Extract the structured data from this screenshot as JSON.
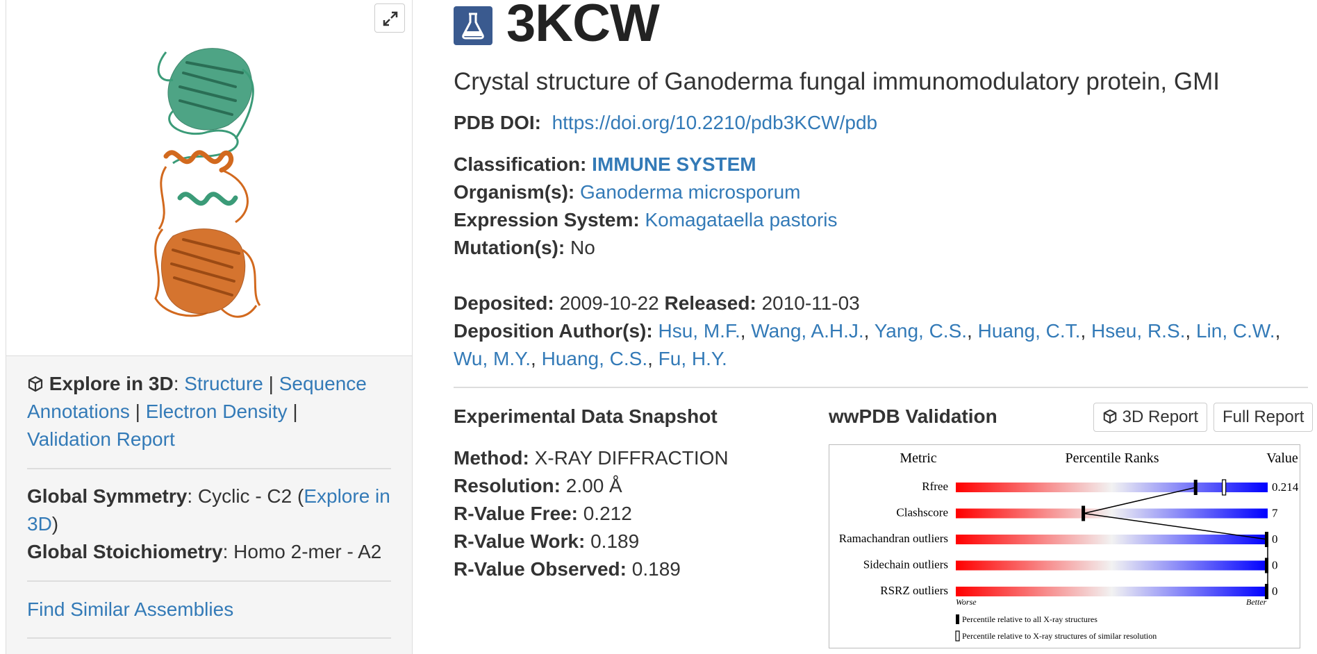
{
  "left_panel": {
    "explore": {
      "label": "Explore in 3D",
      "colon": ":",
      "links": [
        "Structure",
        "Sequence Annotations",
        "Electron Density",
        "Validation Report"
      ],
      "separator": "|"
    },
    "symmetry": {
      "label": "Global Symmetry",
      "value": ": Cyclic - C2",
      "explore_link": "Explore in 3D",
      "open_paren": "(",
      "close_paren": ")"
    },
    "stoichiometry": {
      "label": "Global Stoichiometry",
      "value": ": Homo 2-mer - A2"
    },
    "find_similar": "Find Similar Assemblies"
  },
  "header": {
    "id": "3KCW",
    "title": "Crystal structure of Ganoderma fungal immunomodulatory protein, GMI"
  },
  "details": {
    "doi_label": "PDB DOI:",
    "doi": "https://doi.org/10.2210/pdb3KCW/pdb",
    "classification_label": "Classification:",
    "classification": "IMMUNE SYSTEM",
    "organism_label": "Organism(s):",
    "organism": "Ganoderma microsporum",
    "expression_label": "Expression System:",
    "expression": "Komagataella pastoris",
    "mutation_label": "Mutation(s):",
    "mutation": "No",
    "deposited_label": "Deposited:",
    "deposited": "2009-10-22",
    "released_label": "Released:",
    "released": "2010-11-03",
    "authors_label": "Deposition Author(s):",
    "authors": [
      "Hsu, M.F.",
      "Wang, A.H.J.",
      "Yang, C.S.",
      "Huang, C.T.",
      "Hseu, R.S.",
      "Lin, C.W.",
      "Wu, M.Y.",
      "Huang, C.S.",
      "Fu, H.Y."
    ]
  },
  "snapshot": {
    "title": "Experimental Data Snapshot",
    "rows": [
      {
        "label": "Method:",
        "value": "X-RAY DIFFRACTION"
      },
      {
        "label": "Resolution:",
        "value": "2.00 Å"
      },
      {
        "label": "R-Value Free:",
        "value": "0.212"
      },
      {
        "label": "R-Value Work:",
        "value": "0.189"
      },
      {
        "label": "R-Value Observed:",
        "value": "0.189"
      }
    ]
  },
  "validation": {
    "title": "wwPDB Validation",
    "btn_3d": "3D Report",
    "btn_full": "Full Report",
    "header_metric": "Metric",
    "header_ranks": "Percentile Ranks",
    "header_value": "Value",
    "worse": "Worse",
    "better": "Better",
    "legend_all": "Percentile relative to all X-ray structures",
    "legend_similar": "Percentile relative to X-ray structures of similar resolution",
    "metrics": [
      {
        "name": "Rfree",
        "value": "0.214",
        "pct_all": 0.77,
        "pct_similar": 0.86
      },
      {
        "name": "Clashscore",
        "value": "7",
        "pct_all": 0.41,
        "pct_similar": null
      },
      {
        "name": "Ramachandran outliers",
        "value": "0",
        "pct_all": 1.0,
        "pct_similar": null
      },
      {
        "name": "Sidechain outliers",
        "value": "0",
        "pct_all": 1.0,
        "pct_similar": null
      },
      {
        "name": "RSRZ outliers",
        "value": "0",
        "pct_all": 1.0,
        "pct_similar": null
      }
    ]
  }
}
